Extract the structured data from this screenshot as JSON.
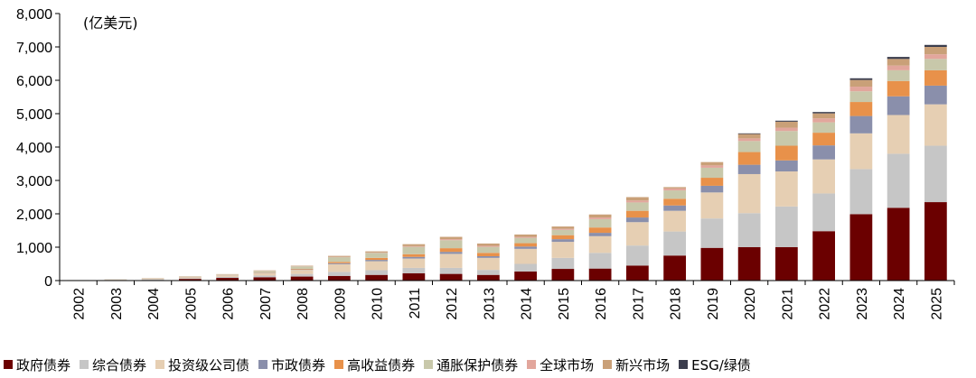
{
  "chart_data": {
    "type": "bar",
    "stacked": true,
    "unit_label": "(亿美元)",
    "categories": [
      "2002",
      "2003",
      "2004",
      "2005",
      "2006",
      "2007",
      "2008",
      "2009",
      "2010",
      "2011",
      "2012",
      "2013",
      "2014",
      "2015",
      "2016",
      "2017",
      "2018",
      "2019",
      "2020",
      "2021",
      "2022",
      "2023",
      "2024",
      "2025"
    ],
    "ylim": [
      0,
      8000
    ],
    "yticks": [
      "0",
      "1,000",
      "2,000",
      "3,000",
      "4,000",
      "5,000",
      "6,000",
      "7,000",
      "8,000"
    ],
    "ytick_values": [
      0,
      1000,
      2000,
      3000,
      4000,
      5000,
      6000,
      7000,
      8000
    ],
    "grid": false,
    "legend_position": "bottom",
    "series": [
      {
        "name": "政府债券",
        "color": "#6b0000",
        "values": [
          5,
          10,
          15,
          50,
          80,
          100,
          120,
          140,
          170,
          220,
          200,
          170,
          270,
          350,
          360,
          450,
          750,
          980,
          1000,
          1000,
          1480,
          1990,
          2180,
          2350
        ]
      },
      {
        "name": "综合债券",
        "color": "#c6c6c6",
        "values": [
          5,
          10,
          15,
          20,
          30,
          50,
          80,
          120,
          140,
          160,
          180,
          150,
          230,
          330,
          470,
          600,
          720,
          880,
          1020,
          1220,
          1130,
          1350,
          1620,
          1690
        ]
      },
      {
        "name": "投资级公司债",
        "color": "#e6cfb3",
        "values": [
          5,
          10,
          20,
          30,
          50,
          80,
          120,
          230,
          270,
          280,
          420,
          360,
          450,
          480,
          500,
          700,
          620,
          780,
          1170,
          1050,
          1020,
          1070,
          1160,
          1240
        ]
      },
      {
        "name": "市政债券",
        "color": "#8a8fab",
        "values": [
          0,
          2,
          5,
          5,
          5,
          10,
          15,
          30,
          40,
          50,
          60,
          50,
          70,
          80,
          100,
          140,
          160,
          200,
          280,
          330,
          420,
          520,
          560,
          560
        ]
      },
      {
        "name": "高收益债券",
        "color": "#e8914a",
        "values": [
          0,
          2,
          5,
          5,
          5,
          10,
          20,
          40,
          60,
          80,
          110,
          100,
          100,
          120,
          160,
          200,
          200,
          240,
          380,
          440,
          380,
          420,
          460,
          460
        ]
      },
      {
        "name": "通胀保护债券",
        "color": "#c8c8aa",
        "values": [
          0,
          5,
          10,
          10,
          15,
          40,
          70,
          140,
          150,
          220,
          240,
          180,
          160,
          160,
          250,
          250,
          250,
          300,
          330,
          440,
          310,
          320,
          320,
          340
        ]
      },
      {
        "name": "全球市场",
        "color": "#e2a69c",
        "values": [
          0,
          0,
          2,
          3,
          3,
          5,
          5,
          10,
          10,
          20,
          30,
          30,
          30,
          30,
          50,
          60,
          60,
          70,
          80,
          100,
          120,
          140,
          140,
          140
        ]
      },
      {
        "name": "新兴市场",
        "color": "#c9a078",
        "values": [
          0,
          0,
          3,
          5,
          5,
          10,
          15,
          30,
          35,
          60,
          70,
          70,
          70,
          70,
          90,
          100,
          40,
          100,
          130,
          180,
          150,
          200,
          200,
          220
        ]
      },
      {
        "name": "ESG/绿债",
        "color": "#3b3d4d",
        "values": [
          0,
          0,
          0,
          0,
          0,
          0,
          0,
          0,
          0,
          0,
          0,
          0,
          0,
          0,
          0,
          0,
          0,
          0,
          20,
          30,
          40,
          50,
          60,
          60
        ]
      }
    ]
  }
}
